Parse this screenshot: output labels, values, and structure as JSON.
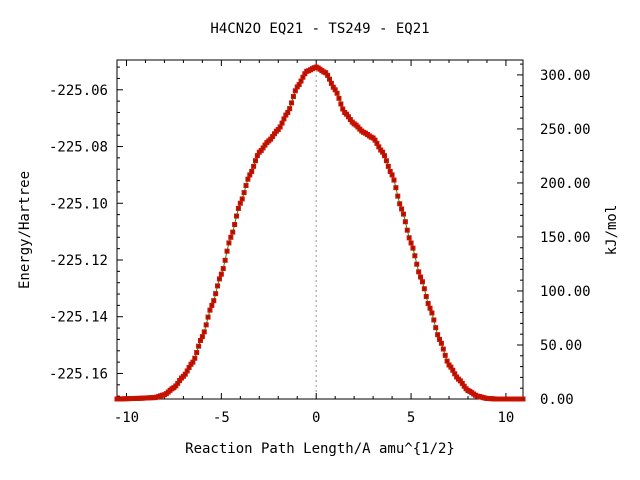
{
  "chart_data": {
    "type": "line",
    "title": "H4CN2O   EQ21 - TS249 - EQ21",
    "xlabel": "Reaction Path Length/A amu^{1/2}",
    "ylabel": "Energy/Hartree",
    "y2label": "kJ/mol",
    "xlim": [
      -10.5,
      10.9
    ],
    "ylim": [
      -225.169,
      -225.0495
    ],
    "y2lim": [
      0.0,
      313.8
    ],
    "x_ticks": [
      "-10",
      "-5",
      "0",
      "5",
      "10"
    ],
    "x_tick_values": [
      -10,
      -5,
      0,
      5,
      10
    ],
    "y_ticks": [
      "-225.06",
      "-225.08",
      "-225.10",
      "-225.12",
      "-225.14",
      "-225.16"
    ],
    "y_tick_values": [
      -225.06,
      -225.08,
      -225.1,
      -225.12,
      -225.14,
      -225.16
    ],
    "y2_ticks": [
      "300.00",
      "250.00",
      "200.00",
      "150.00",
      "100.00",
      "50.00",
      "0.00"
    ],
    "y2_tick_values": [
      300,
      250,
      200,
      150,
      100,
      50,
      0
    ],
    "ts_marker_x": 0,
    "grid": false,
    "colors": {
      "line": "#1a8f1a",
      "marker": "#cc1100",
      "marker_center": "#8b1a00",
      "ts_line": "#999999"
    },
    "series": [
      {
        "x": [
          -10.5,
          -9.5,
          -8.5,
          -8.0,
          -7.5,
          -7.0,
          -6.5,
          -6.0,
          -5.5,
          -5.0,
          -4.5,
          -4.0,
          -3.5,
          -3.0,
          -2.5,
          -2.0,
          -1.5,
          -1.0,
          -0.5,
          0.0,
          0.5,
          1.0,
          1.5,
          2.0,
          2.5,
          3.0,
          3.5,
          4.0,
          4.5,
          5.0,
          5.5,
          6.0,
          6.5,
          7.0,
          7.5,
          8.0,
          8.5,
          9.0,
          9.5,
          10.0,
          10.9
        ],
        "y": [
          -225.169,
          -225.1688,
          -225.1685,
          -225.1675,
          -225.165,
          -225.161,
          -225.156,
          -225.147,
          -225.136,
          -225.125,
          -225.112,
          -225.1,
          -225.09,
          -225.082,
          -225.078,
          -225.074,
          -225.068,
          -225.059,
          -225.0535,
          -225.052,
          -225.054,
          -225.06,
          -225.068,
          -225.072,
          -225.075,
          -225.077,
          -225.082,
          -225.09,
          -225.102,
          -225.114,
          -225.126,
          -225.137,
          -225.148,
          -225.157,
          -225.162,
          -225.166,
          -225.168,
          -225.1688,
          -225.169,
          -225.169,
          -225.169
        ]
      }
    ]
  }
}
